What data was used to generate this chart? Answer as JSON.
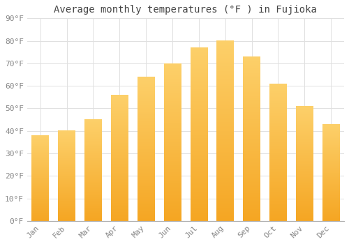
{
  "months": [
    "Jan",
    "Feb",
    "Mar",
    "Apr",
    "May",
    "Jun",
    "Jul",
    "Aug",
    "Sep",
    "Oct",
    "Nov",
    "Dec"
  ],
  "values": [
    38,
    40,
    45,
    56,
    64,
    70,
    77,
    80,
    73,
    61,
    51,
    43
  ],
  "bar_color_bottom": "#F5A623",
  "bar_color_top": "#FDD06A",
  "title": "Average monthly temperatures (°F ) in Fujioka",
  "ylim": [
    0,
    90
  ],
  "yticks": [
    0,
    10,
    20,
    30,
    40,
    50,
    60,
    70,
    80,
    90
  ],
  "ytick_labels": [
    "0°F",
    "10°F",
    "20°F",
    "30°F",
    "40°F",
    "50°F",
    "60°F",
    "70°F",
    "80°F",
    "90°F"
  ],
  "background_color": "#FFFFFF",
  "plot_bg_color": "#FFFFFF",
  "grid_color": "#E0E0E0",
  "tick_color": "#888888",
  "title_fontsize": 10,
  "tick_fontsize": 8,
  "font_family": "monospace",
  "bar_width": 0.65
}
